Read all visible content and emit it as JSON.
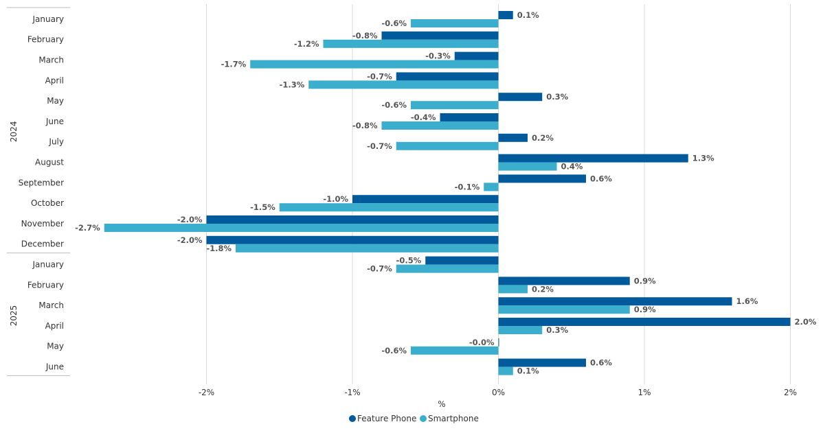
{
  "chart_data": {
    "type": "bar",
    "orientation": "horizontal",
    "title": "",
    "xlabel": "%",
    "ylabel": "",
    "xlim": [
      -2.7,
      2.0
    ],
    "x_ticks": [
      -2,
      -1,
      0,
      1,
      2
    ],
    "x_tick_labels": [
      "-2%",
      "-1%",
      "0%",
      "1%",
      "2%"
    ],
    "grid": "vertical",
    "legend": "bottom-center",
    "groups": [
      {
        "label": "2024",
        "months": [
          "January",
          "February",
          "March",
          "April",
          "May",
          "June",
          "July",
          "August",
          "September",
          "October",
          "November",
          "December"
        ]
      },
      {
        "label": "2025",
        "months": [
          "January",
          "February",
          "March",
          "April",
          "May",
          "June"
        ]
      }
    ],
    "series": [
      {
        "name": "Feature Phone",
        "color": "#005a9c",
        "values": [
          0.1,
          -0.8,
          -0.3,
          -0.7,
          0.3,
          -0.4,
          0.2,
          1.3,
          0.6,
          -1.0,
          -2.0,
          -2.0,
          -0.5,
          0.9,
          1.6,
          2.0,
          -0.0,
          0.6
        ],
        "labels": [
          "0.1%",
          "-0.8%",
          "-0.3%",
          "-0.7%",
          "0.3%",
          "-0.4%",
          "0.2%",
          "1.3%",
          "0.6%",
          "-1.0%",
          "-2.0%",
          "-2.0%",
          "-0.5%",
          "0.9%",
          "1.6%",
          "2.0%",
          "-0.0%",
          "0.6%"
        ]
      },
      {
        "name": "Smartphone",
        "color": "#3aaecc",
        "values": [
          -0.6,
          -1.2,
          -1.7,
          -1.3,
          -0.6,
          -0.8,
          -0.7,
          0.4,
          -0.1,
          -1.5,
          -2.7,
          -1.8,
          -0.7,
          0.2,
          0.9,
          0.3,
          -0.6,
          0.1
        ],
        "labels": [
          "-0.6%",
          "-1.2%",
          "-1.7%",
          "-1.3%",
          "-0.6%",
          "-0.8%",
          "-0.7%",
          "0.4%",
          "-0.1%",
          "-1.5%",
          "-2.7%",
          "-1.8%",
          "-0.7%",
          "0.2%",
          "0.9%",
          "0.3%",
          "-0.6%",
          "0.1%"
        ]
      }
    ]
  }
}
